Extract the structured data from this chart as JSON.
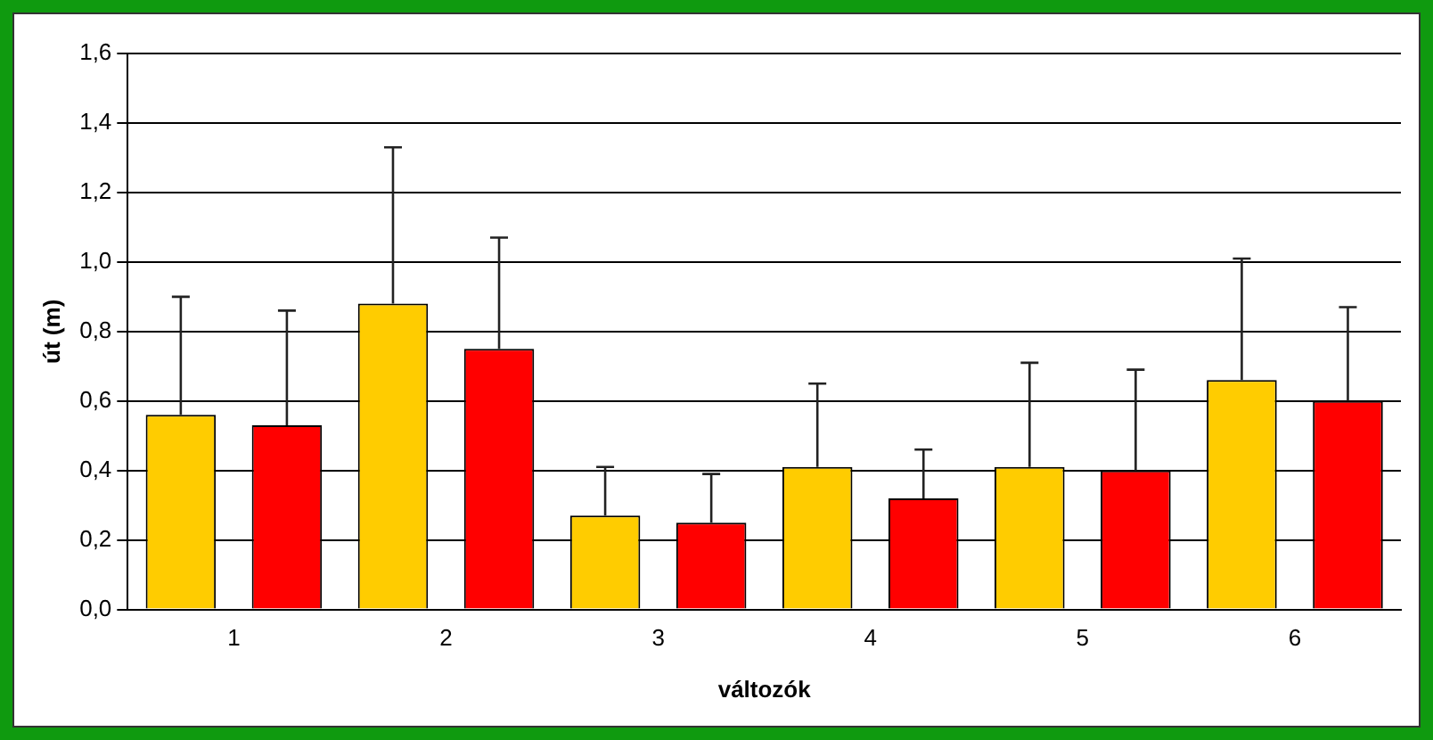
{
  "chart_data": {
    "type": "bar",
    "xlabel": "változók",
    "ylabel": "út (m)",
    "categories": [
      "1",
      "2",
      "3",
      "4",
      "5",
      "6"
    ],
    "series": [
      {
        "color": "#ffcc00",
        "values": [
          0.56,
          0.88,
          0.27,
          0.41,
          0.41,
          0.66
        ],
        "errors": [
          [
            0.56,
            0.9
          ],
          [
            0.88,
            1.33
          ],
          [
            0.27,
            0.41
          ],
          [
            0.41,
            0.65
          ],
          [
            0.41,
            0.71
          ],
          [
            0.66,
            1.01
          ]
        ]
      },
      {
        "color": "#ff0000",
        "values": [
          0.53,
          0.75,
          0.25,
          0.32,
          0.4,
          0.6
        ],
        "errors": [
          [
            0.53,
            0.86
          ],
          [
            0.75,
            1.07
          ],
          [
            0.25,
            0.39
          ],
          [
            0.32,
            0.46
          ],
          [
            0.4,
            0.69
          ],
          [
            0.6,
            0.87
          ]
        ]
      }
    ],
    "ylim": [
      0,
      1.6
    ],
    "yticks": [
      {
        "value": 0,
        "label": "0,0"
      },
      {
        "value": 0.2,
        "label": "0,2"
      },
      {
        "value": 0.4,
        "label": "0,4"
      },
      {
        "value": 0.6,
        "label": "0,6"
      },
      {
        "value": 0.8,
        "label": "0,8"
      },
      {
        "value": 1,
        "label": "1,0"
      },
      {
        "value": 1.2,
        "label": "1,2"
      },
      {
        "value": 1.4,
        "label": "1,4"
      },
      {
        "value": 1.6,
        "label": "1,6"
      }
    ],
    "grid": "y",
    "legend": false
  }
}
